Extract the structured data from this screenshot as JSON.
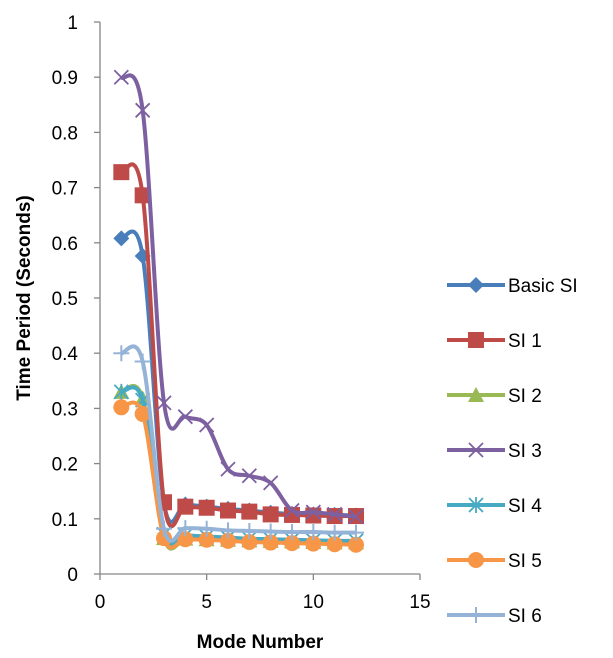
{
  "chart_data": {
    "type": "line",
    "title": "",
    "xlabel": "Mode Number",
    "ylabel": "Time Period (Seconds)",
    "xlim": [
      0,
      15
    ],
    "ylim": [
      0,
      1
    ],
    "x_ticks": [
      "0",
      "5",
      "10",
      "15"
    ],
    "y_ticks": [
      "0",
      "0.1",
      "0.2",
      "0.3",
      "0.4",
      "0.5",
      "0.6",
      "0.7",
      "0.8",
      "0.9",
      "1"
    ],
    "grid": false,
    "legend_position": "right",
    "x": [
      1,
      2,
      3,
      4,
      5,
      6,
      7,
      8,
      9,
      10,
      11,
      12
    ],
    "series": [
      {
        "name": "Basic SI",
        "color": "#4A7EBB",
        "marker": "diamond",
        "values": [
          0.608,
          0.576,
          0.128,
          0.126,
          0.122,
          0.118,
          0.115,
          0.111,
          0.109,
          0.108,
          0.107,
          0.106
        ]
      },
      {
        "name": "SI 1",
        "color": "#BE4B48",
        "marker": "square",
        "values": [
          0.728,
          0.686,
          0.13,
          0.122,
          0.12,
          0.115,
          0.113,
          0.108,
          0.107,
          0.106,
          0.105,
          0.105
        ]
      },
      {
        "name": "SI 2",
        "color": "#98B954",
        "marker": "triangle",
        "values": [
          0.33,
          0.318,
          0.065,
          0.064,
          0.063,
          0.062,
          0.061,
          0.06,
          0.059,
          0.058,
          0.057,
          0.057
        ]
      },
      {
        "name": "SI 3",
        "color": "#7D60A0",
        "marker": "x",
        "values": [
          0.9,
          0.84,
          0.31,
          0.285,
          0.27,
          0.19,
          0.178,
          0.165,
          0.115,
          0.112,
          0.108,
          0.104
        ]
      },
      {
        "name": "SI 4",
        "color": "#46AAC5",
        "marker": "asterisk",
        "values": [
          0.33,
          0.315,
          0.072,
          0.07,
          0.068,
          0.066,
          0.064,
          0.063,
          0.062,
          0.061,
          0.06,
          0.06
        ]
      },
      {
        "name": "SI 5",
        "color": "#F79646",
        "marker": "circle",
        "values": [
          0.302,
          0.29,
          0.065,
          0.063,
          0.062,
          0.06,
          0.058,
          0.057,
          0.056,
          0.055,
          0.054,
          0.053
        ]
      },
      {
        "name": "SI 6",
        "color": "#95B3D7",
        "marker": "plus",
        "values": [
          0.4,
          0.385,
          0.082,
          0.083,
          0.082,
          0.079,
          0.078,
          0.077,
          0.076,
          0.076,
          0.075,
          0.075
        ]
      }
    ]
  }
}
